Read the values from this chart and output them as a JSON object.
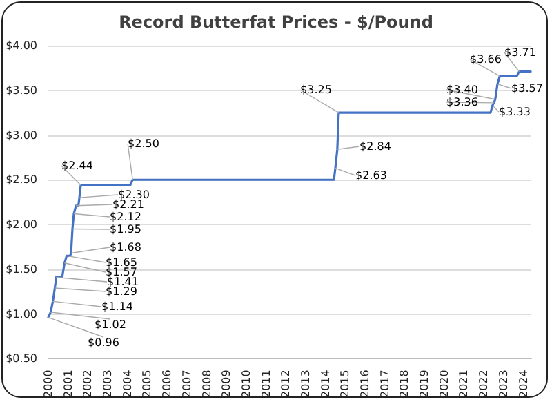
{
  "chart_data": {
    "type": "line",
    "title": "Record Butterfat Prices - $/Pound",
    "x": [
      2000.0,
      2000.12,
      2000.23,
      2000.33,
      2000.4,
      2000.7,
      2000.82,
      2000.93,
      2001.1,
      2001.15,
      2001.22,
      2001.29,
      2001.4,
      2001.52,
      2001.57,
      2001.64,
      2004.14,
      2004.26,
      2014.43,
      2014.5,
      2014.6,
      2014.67,
      2022.34,
      2022.44,
      2022.51,
      2022.58,
      2022.69,
      2022.81,
      2023.67,
      2023.79,
      2024.37
    ],
    "series": [
      {
        "color": "#4472c4",
        "values": [
          0.96,
          1.02,
          1.14,
          1.29,
          1.41,
          1.41,
          1.57,
          1.65,
          1.65,
          1.68,
          1.95,
          2.12,
          2.21,
          2.21,
          2.3,
          2.44,
          2.44,
          2.5,
          2.5,
          2.63,
          2.84,
          3.25,
          3.25,
          3.33,
          3.36,
          3.4,
          3.57,
          3.66,
          3.66,
          3.71,
          3.71
        ],
        "value_labels": [
          "$0.96",
          "$1.02",
          "$1.14",
          "$1.29",
          "$1.41",
          null,
          "$1.57",
          "$1.65",
          null,
          "$1.68",
          "$1.95",
          "$2.12",
          "$2.21",
          null,
          "$2.30",
          "$2.44",
          null,
          "$2.50",
          null,
          "$2.63",
          "$2.84",
          "$3.25",
          null,
          "$3.33",
          "$3.36",
          "$3.40",
          "$3.57",
          "$3.66",
          null,
          "$3.71",
          null
        ]
      }
    ],
    "xlim": [
      2000,
      2024.4
    ],
    "xticks": [
      2000,
      2001,
      2002,
      2003,
      2004,
      2005,
      2006,
      2007,
      2008,
      2009,
      2010,
      2011,
      2012,
      2013,
      2014,
      2015,
      2016,
      2017,
      2018,
      2019,
      2020,
      2021,
      2022,
      2023,
      2024
    ],
    "ylim": [
      0.5,
      4.0
    ],
    "yticks": [
      {
        "value": 0.5,
        "label": "$0.50"
      },
      {
        "value": 1.0,
        "label": "$1.00"
      },
      {
        "value": 1.5,
        "label": "$1.50"
      },
      {
        "value": 2.0,
        "label": "$2.00"
      },
      {
        "value": 2.5,
        "label": "$2.50"
      },
      {
        "value": 3.0,
        "label": "$3.00"
      },
      {
        "value": 3.5,
        "label": "$3.50"
      },
      {
        "value": 4.0,
        "label": "$4.00"
      }
    ],
    "grid": "y",
    "marker": "none",
    "line_style": "solid"
  }
}
